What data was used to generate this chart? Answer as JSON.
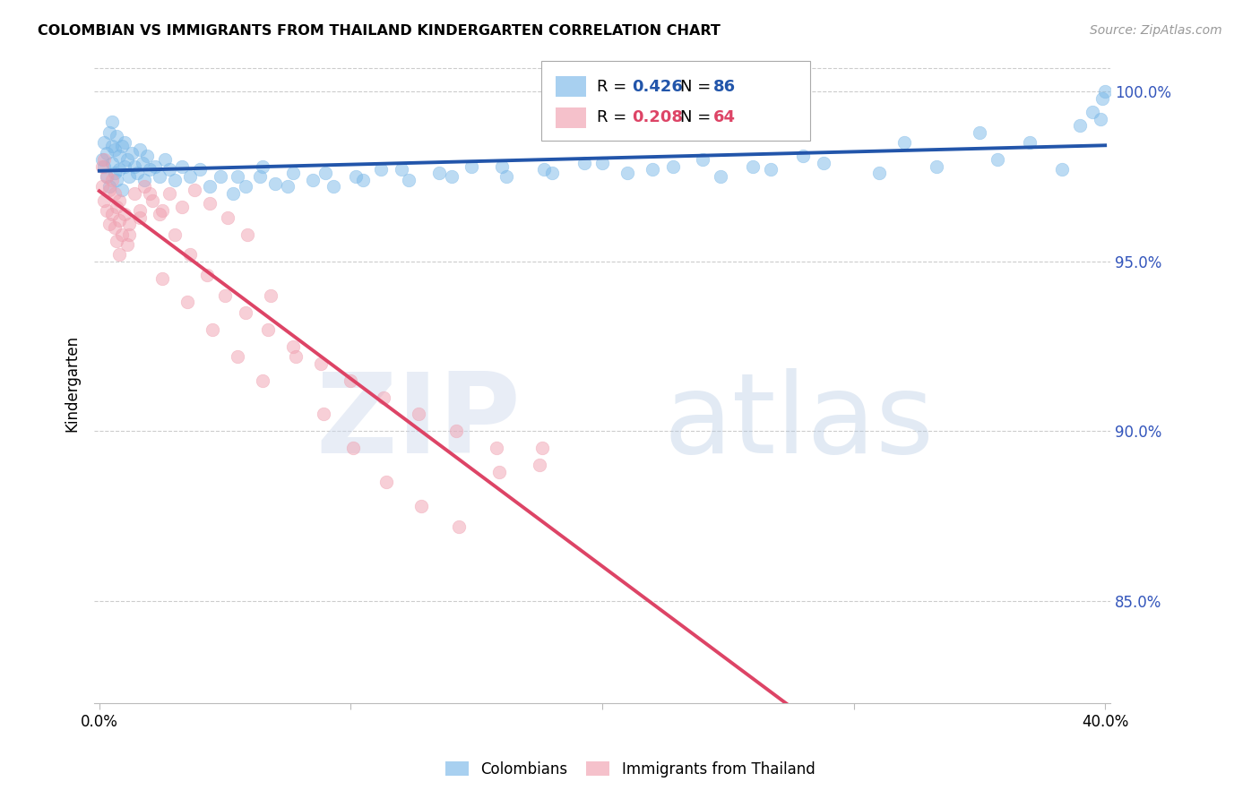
{
  "title": "COLOMBIAN VS IMMIGRANTS FROM THAILAND KINDERGARTEN CORRELATION CHART",
  "source": "Source: ZipAtlas.com",
  "ylabel": "Kindergarten",
  "xlim": [
    -0.002,
    0.402
  ],
  "ylim": [
    0.82,
    1.008
  ],
  "yticks": [
    0.85,
    0.9,
    0.95,
    1.0
  ],
  "ytick_labels": [
    "85.0%",
    "90.0%",
    "95.0%",
    "100.0%"
  ],
  "blue_R": 0.426,
  "blue_N": 86,
  "pink_R": 0.208,
  "pink_N": 64,
  "blue_color": "#7ab8e8",
  "pink_color": "#f0a0b0",
  "blue_line_color": "#2255aa",
  "pink_line_color": "#dd4466",
  "legend_label_blue": "Colombians",
  "legend_label_pink": "Immigrants from Thailand",
  "blue_x": [
    0.001,
    0.002,
    0.002,
    0.003,
    0.003,
    0.004,
    0.004,
    0.005,
    0.005,
    0.005,
    0.006,
    0.006,
    0.007,
    0.007,
    0.008,
    0.008,
    0.009,
    0.009,
    0.01,
    0.01,
    0.011,
    0.012,
    0.013,
    0.014,
    0.015,
    0.016,
    0.017,
    0.018,
    0.019,
    0.02,
    0.022,
    0.024,
    0.026,
    0.028,
    0.03,
    0.033,
    0.036,
    0.04,
    0.044,
    0.048,
    0.053,
    0.058,
    0.064,
    0.07,
    0.077,
    0.085,
    0.093,
    0.102,
    0.112,
    0.123,
    0.135,
    0.148,
    0.162,
    0.177,
    0.193,
    0.21,
    0.228,
    0.247,
    0.267,
    0.288,
    0.31,
    0.333,
    0.357,
    0.383,
    0.055,
    0.065,
    0.075,
    0.09,
    0.105,
    0.12,
    0.14,
    0.16,
    0.18,
    0.2,
    0.22,
    0.24,
    0.26,
    0.28,
    0.32,
    0.35,
    0.37,
    0.39,
    0.395,
    0.399,
    0.4,
    0.398
  ],
  "blue_y": [
    0.98,
    0.985,
    0.978,
    0.982,
    0.975,
    0.988,
    0.972,
    0.979,
    0.984,
    0.991,
    0.976,
    0.983,
    0.987,
    0.974,
    0.981,
    0.977,
    0.984,
    0.971,
    0.978,
    0.985,
    0.98,
    0.975,
    0.982,
    0.978,
    0.976,
    0.983,
    0.979,
    0.974,
    0.981,
    0.977,
    0.978,
    0.975,
    0.98,
    0.977,
    0.974,
    0.978,
    0.975,
    0.977,
    0.972,
    0.975,
    0.97,
    0.972,
    0.975,
    0.973,
    0.976,
    0.974,
    0.972,
    0.975,
    0.977,
    0.974,
    0.976,
    0.978,
    0.975,
    0.977,
    0.979,
    0.976,
    0.978,
    0.975,
    0.977,
    0.979,
    0.976,
    0.978,
    0.98,
    0.977,
    0.975,
    0.978,
    0.972,
    0.976,
    0.974,
    0.977,
    0.975,
    0.978,
    0.976,
    0.979,
    0.977,
    0.98,
    0.978,
    0.981,
    0.985,
    0.988,
    0.985,
    0.99,
    0.994,
    0.998,
    1.0,
    0.992
  ],
  "pink_x": [
    0.001,
    0.001,
    0.002,
    0.002,
    0.003,
    0.003,
    0.004,
    0.004,
    0.005,
    0.005,
    0.006,
    0.006,
    0.007,
    0.007,
    0.008,
    0.008,
    0.009,
    0.01,
    0.011,
    0.012,
    0.014,
    0.016,
    0.018,
    0.021,
    0.024,
    0.028,
    0.033,
    0.038,
    0.044,
    0.051,
    0.059,
    0.068,
    0.078,
    0.089,
    0.101,
    0.114,
    0.128,
    0.143,
    0.159,
    0.176,
    0.008,
    0.012,
    0.016,
    0.02,
    0.025,
    0.03,
    0.036,
    0.043,
    0.05,
    0.058,
    0.067,
    0.077,
    0.088,
    0.1,
    0.113,
    0.127,
    0.142,
    0.158,
    0.175,
    0.025,
    0.035,
    0.045,
    0.055,
    0.065
  ],
  "pink_y": [
    0.978,
    0.972,
    0.98,
    0.968,
    0.975,
    0.965,
    0.971,
    0.961,
    0.974,
    0.964,
    0.97,
    0.96,
    0.966,
    0.956,
    0.962,
    0.952,
    0.958,
    0.964,
    0.955,
    0.961,
    0.97,
    0.965,
    0.972,
    0.968,
    0.964,
    0.97,
    0.966,
    0.971,
    0.967,
    0.963,
    0.958,
    0.94,
    0.922,
    0.905,
    0.895,
    0.885,
    0.878,
    0.872,
    0.888,
    0.895,
    0.968,
    0.958,
    0.963,
    0.97,
    0.965,
    0.958,
    0.952,
    0.946,
    0.94,
    0.935,
    0.93,
    0.925,
    0.92,
    0.915,
    0.91,
    0.905,
    0.9,
    0.895,
    0.89,
    0.945,
    0.938,
    0.93,
    0.922,
    0.915
  ]
}
